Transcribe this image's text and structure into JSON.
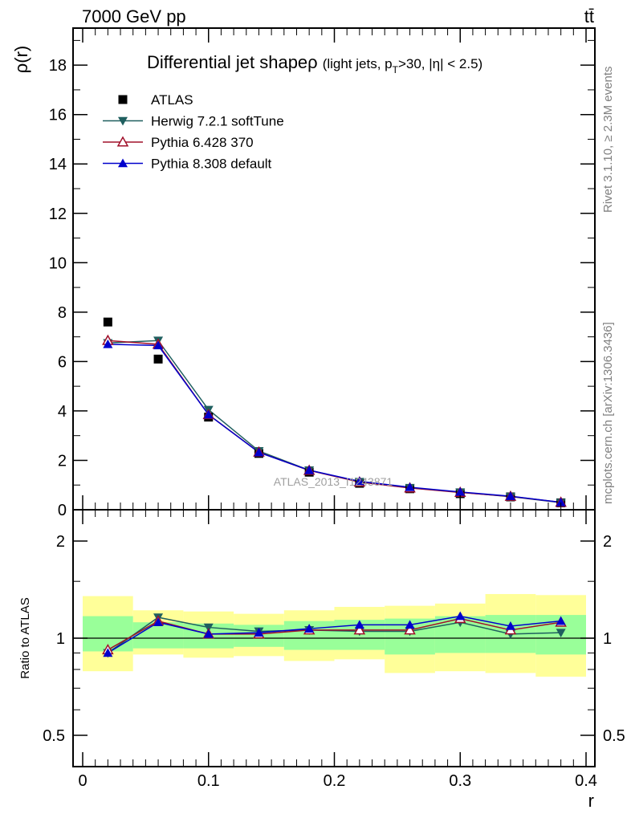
{
  "header": {
    "energy_label": "7000 GeV pp",
    "process_label": "tt̄"
  },
  "side_labels": {
    "rivet": "Rivet 3.1.10, ≥ 2.3M events",
    "mcplots": "mcplots.cern.ch [arXiv:1306.3436]"
  },
  "watermark": "ATLAS_2013_I1243871",
  "chart_data": [
    {
      "type": "scatter",
      "title": "Differential jet shape ρ",
      "title_main": "Differential jet shape",
      "title_rho": "ρ",
      "title_sub_pre": "(light jets, p",
      "title_sub_sub": "T",
      "title_sub_post": ">30, |η| < 2.5)",
      "xlabel": "r",
      "ylabel": "ρ(r)",
      "xlim": [
        0,
        0.4
      ],
      "ylim": [
        0,
        19.5
      ],
      "x_ticks": [
        0,
        0.1,
        0.2,
        0.3,
        0.4
      ],
      "y_ticks": [
        0,
        2,
        4,
        6,
        8,
        10,
        12,
        14,
        16,
        18
      ],
      "y_tick_labels": [
        "0",
        "2",
        "4",
        "6",
        "8",
        "10",
        "12",
        "14",
        "16",
        "18"
      ],
      "legend_position": "top-left",
      "x": [
        0.02,
        0.06,
        0.1,
        0.14,
        0.18,
        0.22,
        0.26,
        0.3,
        0.34,
        0.38
      ],
      "series": [
        {
          "name": "ATLAS",
          "marker": "square",
          "color": "#000000",
          "values": [
            7.6,
            6.1,
            3.75,
            2.28,
            1.52,
            1.07,
            0.85,
            0.65,
            0.52,
            0.28
          ]
        },
        {
          "name": "Herwig 7.2.1 softTune",
          "marker": "triangle-down",
          "color": "#1f5f5f",
          "values": [
            6.75,
            6.85,
            4.05,
            2.38,
            1.6,
            1.13,
            0.89,
            0.71,
            0.53,
            0.29
          ]
        },
        {
          "name": "Pythia 6.428 370",
          "marker": "triangle-up-open",
          "color": "#a0102a",
          "values": [
            6.85,
            6.7,
            3.85,
            2.33,
            1.59,
            1.12,
            0.88,
            0.7,
            0.54,
            0.3
          ]
        },
        {
          "name": "Pythia 8.308 default",
          "marker": "triangle-up",
          "color": "#0000cc",
          "values": [
            6.7,
            6.65,
            3.85,
            2.32,
            1.6,
            1.15,
            0.91,
            0.72,
            0.55,
            0.3
          ]
        }
      ]
    },
    {
      "type": "scatter",
      "xlabel": "r",
      "ylabel": "Ratio to ATLAS",
      "scale": "log",
      "xlim": [
        0,
        0.4
      ],
      "ylim": [
        0.4,
        2.5
      ],
      "x_ticks": [
        0,
        0.1,
        0.2,
        0.3,
        0.4
      ],
      "x_tick_labels": [
        "0",
        "0.1",
        "0.2",
        "0.3",
        "0.4"
      ],
      "y_ticks": [
        0.5,
        1,
        2
      ],
      "y_tick_labels": [
        "0.5",
        "1",
        "2"
      ],
      "reference_line": 1,
      "x": [
        0.02,
        0.06,
        0.1,
        0.14,
        0.18,
        0.22,
        0.26,
        0.3,
        0.34,
        0.38
      ],
      "bands": {
        "bin_edges": [
          0,
          0.04,
          0.08,
          0.12,
          0.16,
          0.2,
          0.24,
          0.28,
          0.32,
          0.36,
          0.4
        ],
        "yellow_low": [
          0.79,
          0.89,
          0.87,
          0.88,
          0.85,
          0.86,
          0.78,
          0.79,
          0.78,
          0.76
        ],
        "yellow_high": [
          1.35,
          1.22,
          1.21,
          1.19,
          1.22,
          1.25,
          1.26,
          1.28,
          1.37,
          1.36
        ],
        "green_low": [
          0.91,
          0.93,
          0.93,
          0.94,
          0.92,
          0.92,
          0.89,
          0.9,
          0.9,
          0.89
        ],
        "green_high": [
          1.17,
          1.12,
          1.11,
          1.1,
          1.13,
          1.14,
          1.15,
          1.17,
          1.18,
          1.18
        ],
        "yellow_color": "#ffff99",
        "green_color": "#99ff99"
      },
      "series": [
        {
          "name": "Herwig 7.2.1 softTune",
          "marker": "triangle-down",
          "color": "#1f5f5f",
          "values": [
            0.9,
            1.16,
            1.08,
            1.05,
            1.06,
            1.05,
            1.05,
            1.12,
            1.03,
            1.04
          ]
        },
        {
          "name": "Pythia 6.428 370",
          "marker": "triangle-up-open",
          "color": "#a0102a",
          "values": [
            0.92,
            1.13,
            1.03,
            1.03,
            1.06,
            1.06,
            1.06,
            1.15,
            1.06,
            1.12
          ]
        },
        {
          "name": "Pythia 8.308 default",
          "marker": "triangle-up",
          "color": "#0000cc",
          "values": [
            0.9,
            1.12,
            1.03,
            1.04,
            1.07,
            1.1,
            1.1,
            1.17,
            1.09,
            1.13
          ]
        }
      ]
    }
  ]
}
